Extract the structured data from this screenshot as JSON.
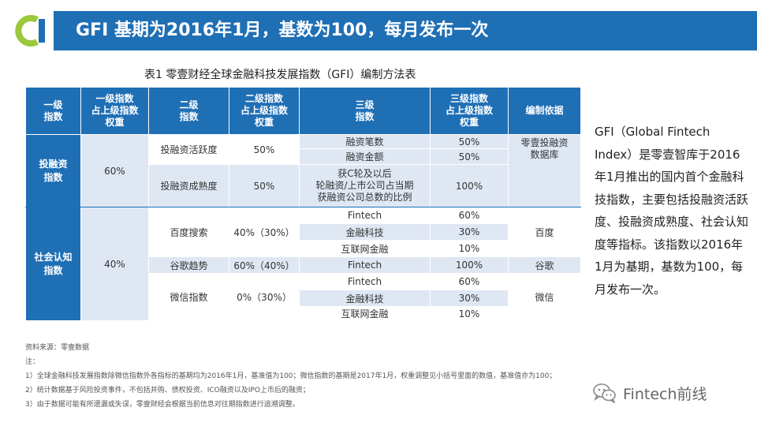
{
  "header": {
    "title": "GFI 基期为2016年1月，基数为100，每月发布一次"
  },
  "table": {
    "caption": "表1   零壹财经全球金融科技发展指数（GFI）编制方法表",
    "headers": [
      "一级指数",
      "一级指数占上级指数权重",
      "二级指数",
      "二级指数占上级指数权重",
      "三级指数",
      "三级指数占上级指数权重",
      "编制依据"
    ],
    "header_lines": [
      [
        "一级",
        "指数"
      ],
      [
        "一级指数",
        "占上级指数",
        "权重"
      ],
      [
        "二级",
        "指数"
      ],
      [
        "二级指数",
        "占上级指数",
        "权重"
      ],
      [
        "三级",
        "指数"
      ],
      [
        "三级指数",
        "占上级指数",
        "权重"
      ],
      [
        "编制依据"
      ]
    ],
    "groups": [
      {
        "level1": [
          "投融资",
          "指数"
        ],
        "weight1": "60%",
        "source": [
          "零壹投融资",
          "数据库"
        ],
        "rows": [
          {
            "level2": "投融资活跃度",
            "weight2": "50%",
            "level3": "融资笔数",
            "weight3": "50%"
          },
          {
            "level3": "融资金额",
            "weight3": "50%"
          },
          {
            "level2": "投融资成熟度",
            "weight2": "50%",
            "level3": [
              "获C轮及以后",
              "轮融资/上市公司占当期",
              "获融资公司总数的比例"
            ],
            "weight3": "100%"
          }
        ]
      },
      {
        "level1": [
          "社会认知",
          "指数"
        ],
        "weight1": "40%",
        "rows": [
          {
            "level2": "百度搜索",
            "weight2": "40%（30%）",
            "level3": "Fintech",
            "weight3": "60%",
            "source": "百度"
          },
          {
            "level3": "金融科技",
            "weight3": "30%"
          },
          {
            "level3": "互联网金融",
            "weight3": "10%"
          },
          {
            "level2": "谷歌趋势",
            "weight2": "60%（40%）",
            "level3": "Fintech",
            "weight3": "100%",
            "source": "谷歌"
          },
          {
            "level2": "微信指数",
            "weight2": "0%（30%）",
            "level3": "Fintech",
            "weight3": "60%",
            "source": "微信"
          },
          {
            "level3": "金融科技",
            "weight3": "30%"
          },
          {
            "level3": "互联网金融",
            "weight3": "10%"
          }
        ]
      }
    ]
  },
  "side_text": "GFI（Global Fintech Index）是零壹智库于2016年1月推出的国内首个金融科技指数，主要包括投融资活跃度、投融资成熟度、社会认知度等指标。该指数以2016年1月为基期，基数为100，每月发布一次。",
  "notes": {
    "source": "资料来源：零壹数据",
    "label": "注：",
    "items": [
      "1）全球金融科技发展指数除微信指数外各指标的基期均为2016年1月，基准值为100；微信指数的基期是2017年1月，权重调整见小括号里面的数值，基准值亦为100；",
      "2）统计数据基于风险投资事件，不包括并购、债权投资、ICO融资以及IPO上市后的融资；",
      "3）由于数据可能有所遗漏或失误，零壹财经会根据当前信息对往期指数进行追溯调整。"
    ]
  },
  "brand": {
    "name": "Fintech前线",
    "icon": "wechat-icon"
  },
  "colors": {
    "primary_blue": "#1f6fb5",
    "light_blue": "#dfe7f3",
    "logo_green": "#9bc83c"
  }
}
